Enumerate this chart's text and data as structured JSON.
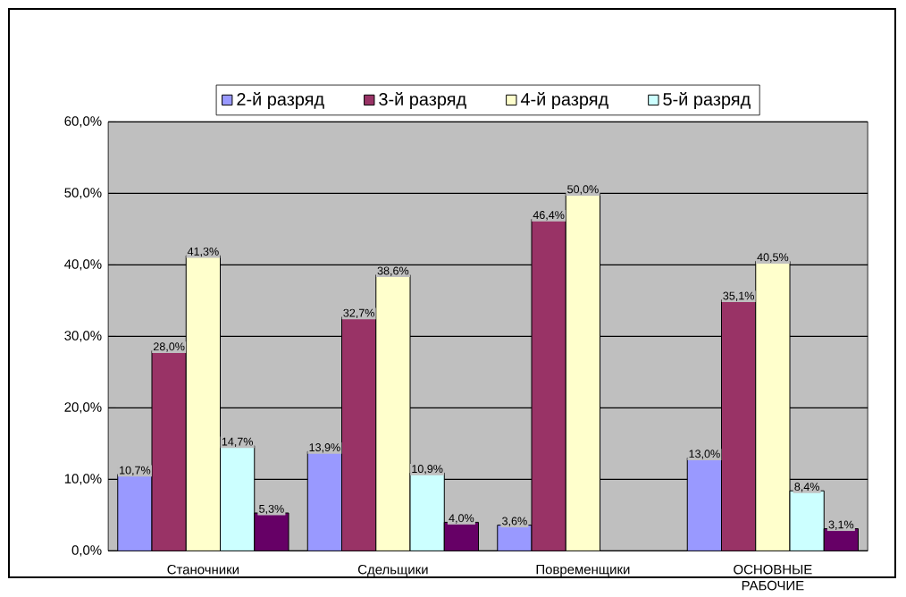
{
  "chart_data": {
    "type": "bar",
    "categories": [
      "Станочники",
      "Сдельщики",
      "Повременщики",
      "ОСНОВНЫЕ РАБОЧИЕ"
    ],
    "series": [
      {
        "name": "2-й разряд",
        "color": "#9999ff",
        "values": [
          10.7,
          13.9,
          3.6,
          13.0
        ],
        "value_labels": [
          "10,7%",
          "13,9%",
          "3,6%",
          "13,0%"
        ]
      },
      {
        "name": "3-й разряд",
        "color": "#993366",
        "values": [
          28.0,
          32.7,
          46.4,
          35.1
        ],
        "value_labels": [
          "28,0%",
          "32,7%",
          "46,4%",
          "35,1%"
        ]
      },
      {
        "name": "4-й разряд",
        "color": "#ffffcc",
        "values": [
          41.3,
          38.6,
          50.0,
          40.5
        ],
        "value_labels": [
          "41,3%",
          "38,6%",
          "50,0%",
          "40,5%"
        ]
      },
      {
        "name": "5-й разряд",
        "color": "#ccffff",
        "values": [
          14.7,
          10.9,
          null,
          8.4
        ],
        "value_labels": [
          "14,7%",
          "10,9%",
          null,
          "8,4%"
        ]
      },
      {
        "color": "#660066",
        "values": [
          5.3,
          4.0,
          null,
          3.1
        ],
        "value_labels": [
          "5,3%",
          "4,0%",
          null,
          "3,1%"
        ]
      }
    ],
    "ylim": [
      0,
      60
    ],
    "yticks": [
      {
        "value": 0,
        "label": "0,0%"
      },
      {
        "value": 10,
        "label": "10,0%"
      },
      {
        "value": 20,
        "label": "20,0%"
      },
      {
        "value": 30,
        "label": "30,0%"
      },
      {
        "value": 40,
        "label": "40,0%"
      },
      {
        "value": 50,
        "label": "50,0%"
      },
      {
        "value": 60,
        "label": "60,0%"
      }
    ],
    "grid": "y",
    "legend": "top"
  }
}
